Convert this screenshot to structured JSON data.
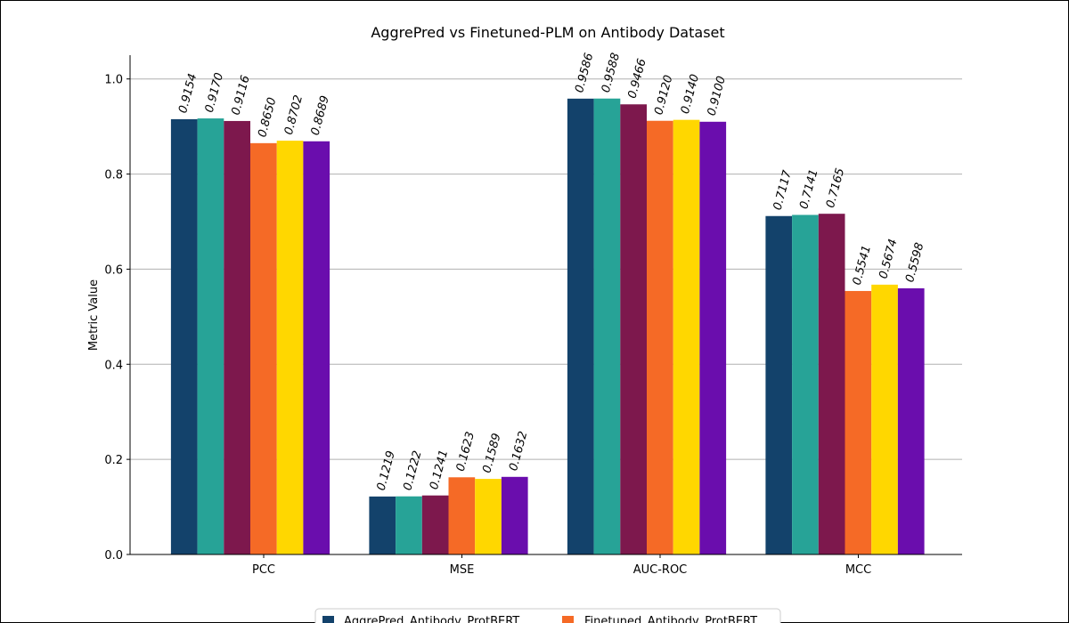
{
  "chart_data": {
    "type": "bar",
    "title": "AggrePred vs Finetuned-PLM on Antibody Dataset",
    "xlabel": "",
    "ylabel": "Metric Value",
    "ylim": [
      0,
      1.05
    ],
    "yticks": [
      "0.0",
      "0.2",
      "0.4",
      "0.6",
      "0.8",
      "1.0"
    ],
    "grid": "horizontal",
    "legend_position": "bottom-center",
    "categories": [
      "PCC",
      "MSE",
      "AUC-ROC",
      "MCC"
    ],
    "series": [
      {
        "name": "AggrePred_Antibody_ProtBERT",
        "color": "#13426b",
        "values": [
          0.9154,
          0.1219,
          0.9586,
          0.7117
        ],
        "labels": [
          "0.9154",
          "0.1219",
          "0.9586",
          "0.7117"
        ]
      },
      {
        "color": "#27a397",
        "values": [
          0.917,
          0.1222,
          0.9588,
          0.7141
        ],
        "labels": [
          "0.9170",
          "0.1222",
          "0.9588",
          "0.7141"
        ]
      },
      {
        "color": "#7d184d",
        "values": [
          0.9116,
          0.1241,
          0.9466,
          0.7165
        ],
        "labels": [
          "0.9116",
          "0.1241",
          "0.9466",
          "0.7165"
        ]
      },
      {
        "name": "Finetuned_Antibody_ProtBERT",
        "color": "#f56a26",
        "values": [
          0.865,
          0.1623,
          0.912,
          0.5541
        ],
        "labels": [
          "0.8650",
          "0.1623",
          "0.9120",
          "0.5541"
        ]
      },
      {
        "color": "#ffd700",
        "values": [
          0.8702,
          0.1589,
          0.914,
          0.5674
        ],
        "labels": [
          "0.8702",
          "0.1589",
          "0.9140",
          "0.5674"
        ]
      },
      {
        "color": "#6a0dad",
        "values": [
          0.8689,
          0.1632,
          0.91,
          0.5598
        ],
        "labels": [
          "0.8689",
          "0.1632",
          "0.9100",
          "0.5598"
        ]
      }
    ]
  }
}
